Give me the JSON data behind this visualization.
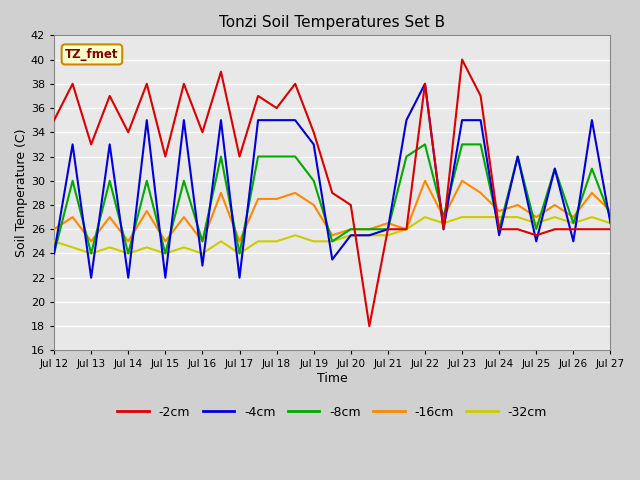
{
  "title": "Tonzi Soil Temperatures Set B",
  "xlabel": "Time",
  "ylabel": "Soil Temperature (C)",
  "ylim": [
    16,
    42
  ],
  "yticks": [
    16,
    18,
    20,
    22,
    24,
    26,
    28,
    30,
    32,
    34,
    36,
    38,
    40,
    42
  ],
  "legend_label": "TZ_fmet",
  "series_colors": {
    "-2cm": "#dd0000",
    "-4cm": "#0000dd",
    "-8cm": "#00aa00",
    "-16cm": "#ff8800",
    "-32cm": "#cccc00"
  },
  "xtick_labels": [
    "Jul 12",
    "Jul 13",
    "Jul 14",
    "Jul 15",
    "Jul 16",
    "Jul 17",
    "Jul 18",
    "Jul 19",
    "Jul 20",
    "Jul 21",
    "Jul 22",
    "Jul 23",
    "Jul 24",
    "Jul 25",
    "Jul 26",
    "Jul 27"
  ],
  "xtick_positions": [
    0,
    1,
    2,
    3,
    4,
    5,
    6,
    7,
    8,
    9,
    10,
    11,
    12,
    13,
    14,
    15
  ],
  "x": [
    0.0,
    0.5,
    1.0,
    1.5,
    2.0,
    2.5,
    3.0,
    3.5,
    4.0,
    4.5,
    5.0,
    5.5,
    6.0,
    6.5,
    7.0,
    7.5,
    8.0,
    8.5,
    9.0,
    9.5,
    10.0,
    10.5,
    11.0,
    11.5,
    12.0,
    12.5,
    13.0,
    13.5,
    14.0,
    14.5,
    15.0
  ],
  "data_2cm": [
    35,
    38,
    33,
    37,
    34,
    38,
    32,
    38,
    34,
    39,
    32,
    37,
    36,
    38,
    34,
    29,
    28,
    18,
    26,
    26,
    38,
    26,
    40,
    37,
    26,
    26,
    25.5,
    26,
    26,
    26,
    26
  ],
  "data_4cm": [
    24,
    33,
    22,
    33,
    22,
    35,
    22,
    35,
    23,
    35,
    22,
    35,
    35,
    35,
    33,
    23.5,
    25.5,
    25.5,
    26,
    35,
    38,
    26,
    35,
    35,
    25.5,
    32,
    25,
    31,
    25,
    35,
    26.5
  ],
  "data_8cm": [
    24,
    30,
    24,
    30,
    24,
    30,
    24,
    30,
    25,
    32,
    24,
    32,
    32,
    32,
    30,
    25,
    26,
    26,
    26,
    32,
    33,
    27,
    33,
    33,
    26,
    32,
    26,
    31,
    26.5,
    31,
    27
  ],
  "data_16cm": [
    26,
    27,
    25,
    27,
    25,
    27.5,
    25,
    27,
    25,
    29,
    25,
    28.5,
    28.5,
    29,
    28,
    25.5,
    26,
    26,
    26.5,
    26,
    30,
    27,
    30,
    29,
    27.5,
    28,
    27,
    28,
    27,
    29,
    27.5
  ],
  "data_32cm": [
    25,
    24.5,
    24,
    24.5,
    24,
    24.5,
    24,
    24.5,
    24,
    25,
    24,
    25,
    25,
    25.5,
    25,
    25,
    25.5,
    25.5,
    25.5,
    26,
    27,
    26.5,
    27,
    27,
    27,
    27,
    26.5,
    27,
    26.5,
    27,
    26.5
  ]
}
